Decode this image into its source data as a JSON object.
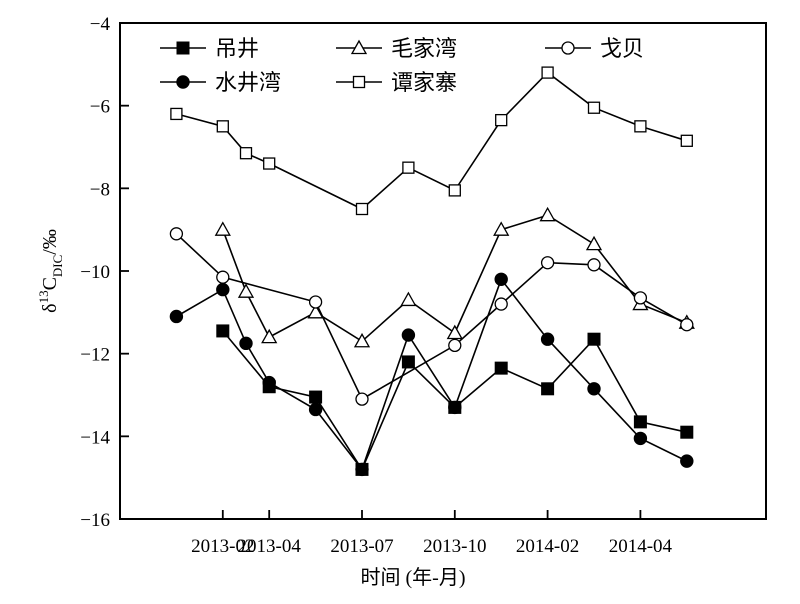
{
  "chart_data": {
    "type": "line",
    "xlabel": "时间 (年-月)",
    "ylabel_main": "δ",
    "ylabel_sup": "13",
    "ylabel_mid": "C",
    "ylabel_sub": "DIC",
    "ylabel_unit": "/‰",
    "ylim": [
      -16,
      -4
    ],
    "yticks": [
      -4,
      -6,
      -8,
      -10,
      -12,
      -14,
      -16
    ],
    "xticks": [
      {
        "label": "2013-02",
        "at": 2
      },
      {
        "label": "2013-04",
        "at": 3
      },
      {
        "label": "2013-07",
        "at": 5
      },
      {
        "label": "2013-10",
        "at": 7
      },
      {
        "label": "2014-02",
        "at": 9
      },
      {
        "label": "2014-04",
        "at": 11
      }
    ],
    "xlim": [
      0,
      13
    ],
    "legend_position": "top",
    "series": [
      {
        "name": "吊井",
        "marker": "filled-square",
        "points": [
          [
            2,
            -11.45
          ],
          [
            3,
            -12.8
          ],
          [
            4,
            -13.05
          ],
          [
            5,
            -14.8
          ],
          [
            6,
            -12.2
          ],
          [
            7,
            -13.3
          ],
          [
            8,
            -12.35
          ],
          [
            9,
            -12.85
          ],
          [
            10,
            -11.65
          ],
          [
            11,
            -13.65
          ],
          [
            12,
            -13.9
          ]
        ]
      },
      {
        "name": "毛家湾",
        "marker": "open-triangle",
        "points": [
          [
            2,
            -9.0
          ],
          [
            2.5,
            -10.5
          ],
          [
            3,
            -11.6
          ],
          [
            4,
            -11.0
          ],
          [
            5,
            -11.7
          ],
          [
            6,
            -10.7
          ],
          [
            7,
            -11.5
          ],
          [
            8,
            -9.0
          ],
          [
            9,
            -8.65
          ],
          [
            10,
            -9.35
          ],
          [
            11,
            -10.8
          ],
          [
            12,
            -11.25
          ]
        ]
      },
      {
        "name": "戈贝",
        "marker": "open-circle",
        "points": [
          [
            1,
            -9.1
          ],
          [
            2,
            -10.15
          ],
          [
            4,
            -10.75
          ],
          [
            5,
            -13.1
          ],
          [
            7,
            -11.8
          ],
          [
            8,
            -10.8
          ],
          [
            9,
            -9.8
          ],
          [
            10,
            -9.85
          ],
          [
            11,
            -10.65
          ],
          [
            12,
            -11.3
          ]
        ]
      },
      {
        "name": "水井湾",
        "marker": "filled-circle",
        "points": [
          [
            1,
            -11.1
          ],
          [
            2,
            -10.45
          ],
          [
            2.5,
            -11.75
          ],
          [
            3,
            -12.7
          ],
          [
            4,
            -13.35
          ],
          [
            5,
            -14.8
          ],
          [
            6,
            -11.55
          ],
          [
            7,
            -13.3
          ],
          [
            8,
            -10.2
          ],
          [
            9,
            -11.65
          ],
          [
            10,
            -12.85
          ],
          [
            11,
            -14.05
          ],
          [
            12,
            -14.6
          ]
        ]
      },
      {
        "name": "谭家寨",
        "marker": "open-square",
        "points": [
          [
            1,
            -6.2
          ],
          [
            2,
            -6.5
          ],
          [
            2.5,
            -7.15
          ],
          [
            3,
            -7.4
          ],
          [
            5,
            -8.5
          ],
          [
            6,
            -7.5
          ],
          [
            7,
            -8.05
          ],
          [
            8,
            -6.35
          ],
          [
            9,
            -5.2
          ],
          [
            10,
            -6.05
          ],
          [
            11,
            -6.5
          ],
          [
            12,
            -6.85
          ]
        ]
      }
    ]
  }
}
